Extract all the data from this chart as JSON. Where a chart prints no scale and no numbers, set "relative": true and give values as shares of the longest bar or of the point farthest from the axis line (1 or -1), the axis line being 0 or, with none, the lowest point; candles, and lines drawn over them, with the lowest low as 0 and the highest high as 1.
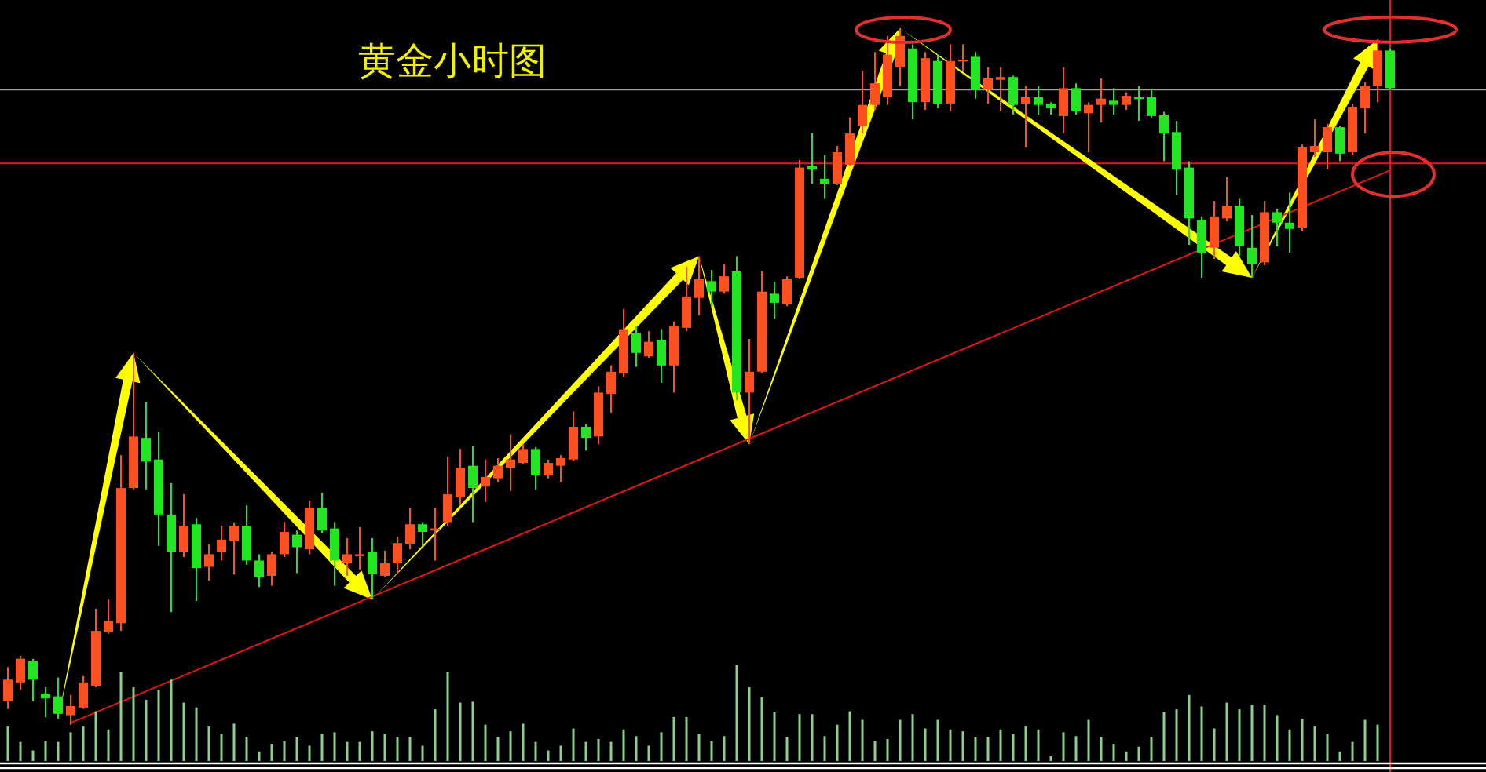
{
  "chart_data": [
    {
      "type": "candlestick",
      "title": "黄金小时图",
      "relative": true,
      "categories": [
        null,
        null,
        null,
        null,
        null,
        null,
        null,
        null,
        null,
        null,
        null,
        null,
        null,
        null,
        null,
        null,
        null,
        null,
        null,
        null,
        null,
        null,
        null,
        null,
        null,
        null,
        null,
        null,
        null,
        null,
        null,
        null,
        null,
        null,
        null,
        null,
        null,
        null,
        null,
        null,
        null,
        null,
        null,
        null,
        null,
        null,
        null,
        null,
        null,
        null,
        null,
        null,
        null,
        null,
        null,
        null,
        null,
        null,
        null,
        null,
        null,
        null,
        null,
        null,
        null,
        null,
        null,
        null,
        null,
        null,
        null,
        null,
        null,
        null,
        null,
        null,
        null,
        null,
        null,
        null,
        null,
        null,
        null,
        null,
        null,
        null,
        null,
        null,
        null,
        null,
        null,
        null,
        null,
        null,
        null,
        null,
        null,
        null,
        null,
        null,
        null,
        null,
        null,
        null,
        null,
        null,
        null,
        null,
        null,
        null,
        null
      ],
      "ohlc": [
        [
          0.034,
          0.083,
          0.023,
          0.065
        ],
        [
          0.061,
          0.099,
          0.05,
          0.095
        ],
        [
          0.092,
          0.095,
          0.034,
          0.065
        ],
        [
          0.045,
          0.054,
          0.011,
          0.038
        ],
        [
          0.041,
          0.068,
          0.009,
          0.016
        ],
        [
          0.014,
          0.043,
          0,
          0.027
        ],
        [
          0.025,
          0.07,
          0.023,
          0.061
        ],
        [
          0.056,
          0.167,
          0.054,
          0.135
        ],
        [
          0.133,
          0.18,
          0.131,
          0.149
        ],
        [
          0.146,
          0.387,
          0.135,
          0.34
        ],
        [
          0.34,
          0.534,
          0.338,
          0.414
        ],
        [
          0.412,
          0.464,
          0.338,
          0.378
        ],
        [
          0.381,
          0.421,
          0.257,
          0.302
        ],
        [
          0.302,
          0.347,
          0.162,
          0.248
        ],
        [
          0.248,
          0.331,
          0.241,
          0.286
        ],
        [
          0.288,
          0.297,
          0.178,
          0.225
        ],
        [
          0.227,
          0.259,
          0.207,
          0.245
        ],
        [
          0.248,
          0.286,
          0.236,
          0.266
        ],
        [
          0.264,
          0.291,
          0.216,
          0.286
        ],
        [
          0.286,
          0.315,
          0.23,
          0.236
        ],
        [
          0.236,
          0.245,
          0.198,
          0.212
        ],
        [
          0.214,
          0.248,
          0.2,
          0.245
        ],
        [
          0.245,
          0.291,
          0.241,
          0.277
        ],
        [
          0.273,
          0.279,
          0.218,
          0.255
        ],
        [
          0.252,
          0.322,
          0.245,
          0.311
        ],
        [
          0.311,
          0.333,
          0.275,
          0.279
        ],
        [
          0.282,
          0.291,
          0.2,
          0.236
        ],
        [
          0.232,
          0.268,
          0.214,
          0.245
        ],
        [
          0.243,
          0.284,
          0.223,
          0.245
        ],
        [
          0.248,
          0.268,
          0.18,
          0.216
        ],
        [
          0.214,
          0.25,
          0.212,
          0.232
        ],
        [
          0.232,
          0.27,
          0.218,
          0.261
        ],
        [
          0.259,
          0.311,
          0.252,
          0.288
        ],
        [
          0.288,
          0.291,
          0.257,
          0.277
        ],
        [
          0.279,
          0.311,
          0.236,
          0.282
        ],
        [
          0.291,
          0.385,
          0.286,
          0.331
        ],
        [
          0.327,
          0.396,
          0.315,
          0.369
        ],
        [
          0.372,
          0.401,
          0.291,
          0.34
        ],
        [
          0.342,
          0.381,
          0.32,
          0.356
        ],
        [
          0.354,
          0.383,
          0.349,
          0.372
        ],
        [
          0.369,
          0.417,
          0.336,
          0.381
        ],
        [
          0.376,
          0.403,
          0.374,
          0.396
        ],
        [
          0.396,
          0.399,
          0.338,
          0.358
        ],
        [
          0.358,
          0.381,
          0.354,
          0.376
        ],
        [
          0.372,
          0.387,
          0.349,
          0.383
        ],
        [
          0.381,
          0.45,
          0.379,
          0.428
        ],
        [
          0.428,
          0.432,
          0.394,
          0.412
        ],
        [
          0.414,
          0.486,
          0.403,
          0.477
        ],
        [
          0.475,
          0.516,
          0.448,
          0.507
        ],
        [
          0.505,
          0.597,
          0.5,
          0.568
        ],
        [
          0.563,
          0.572,
          0.514,
          0.534
        ],
        [
          0.529,
          0.565,
          0.527,
          0.55
        ],
        [
          0.552,
          0.568,
          0.491,
          0.516
        ],
        [
          0.516,
          0.579,
          0.477,
          0.572
        ],
        [
          0.57,
          0.658,
          0.565,
          0.615
        ],
        [
          0.613,
          0.673,
          0.588,
          0.64
        ],
        [
          0.637,
          0.653,
          0.601,
          0.622
        ],
        [
          0.622,
          0.662,
          0.619,
          0.644
        ],
        [
          0.651,
          0.673,
          0.466,
          0.477
        ],
        [
          0.477,
          0.554,
          0.403,
          0.507
        ],
        [
          0.507,
          0.651,
          0.505,
          0.622
        ],
        [
          0.619,
          0.635,
          0.583,
          0.606
        ],
        [
          0.604,
          0.644,
          0.601,
          0.64
        ],
        [
          0.642,
          0.811,
          0.64,
          0.8
        ],
        [
          0.802,
          0.849,
          0.777,
          0.797
        ],
        [
          0.784,
          0.818,
          0.755,
          0.777
        ],
        [
          0.777,
          0.831,
          0.775,
          0.822
        ],
        [
          0.804,
          0.872,
          0.802,
          0.849
        ],
        [
          0.86,
          0.939,
          0.849,
          0.89
        ],
        [
          0.89,
          0.966,
          0.883,
          0.921
        ],
        [
          0.901,
          0.989,
          0.89,
          0.962
        ],
        [
          0.944,
          1,
          0.917,
          0.989
        ],
        [
          0.971,
          0.977,
          0.869,
          0.894
        ],
        [
          0.894,
          0.966,
          0.883,
          0.957
        ],
        [
          0.953,
          0.962,
          0.885,
          0.892
        ],
        [
          0.892,
          0.977,
          0.881,
          0.953
        ],
        [
          0.953,
          0.977,
          0.939,
          0.955
        ],
        [
          0.959,
          0.966,
          0.899,
          0.912
        ],
        [
          0.912,
          0.944,
          0.892,
          0.928
        ],
        [
          0.926,
          0.944,
          0.881,
          0.93
        ],
        [
          0.93,
          0.932,
          0.876,
          0.89
        ],
        [
          0.892,
          0.917,
          0.829,
          0.901
        ],
        [
          0.901,
          0.917,
          0.876,
          0.89
        ],
        [
          0.892,
          0.894,
          0.876,
          0.885
        ],
        [
          0.874,
          0.944,
          0.849,
          0.914
        ],
        [
          0.914,
          0.921,
          0.876,
          0.881
        ],
        [
          0.878,
          0.894,
          0.822,
          0.89
        ],
        [
          0.89,
          0.928,
          0.865,
          0.899
        ],
        [
          0.896,
          0.914,
          0.876,
          0.89
        ],
        [
          0.89,
          0.908,
          0.883,
          0.903
        ],
        [
          0.901,
          0.917,
          0.867,
          0.899
        ],
        [
          0.901,
          0.912,
          0.872,
          0.874
        ],
        [
          0.876,
          0.88,
          0.809,
          0.849
        ],
        [
          0.851,
          0.867,
          0.761,
          0.797
        ],
        [
          0.8,
          0.809,
          0.689,
          0.727
        ],
        [
          0.725,
          0.73,
          0.642,
          0.678
        ],
        [
          0.685,
          0.752,
          0.669,
          0.73
        ],
        [
          0.727,
          0.786,
          0.723,
          0.745
        ],
        [
          0.745,
          0.755,
          0.673,
          0.687
        ],
        [
          0.685,
          0.732,
          0.642,
          0.662
        ],
        [
          0.664,
          0.752,
          0.66,
          0.736
        ],
        [
          0.736,
          0.741,
          0.687,
          0.721
        ],
        [
          0.721,
          0.764,
          0.678,
          0.712
        ],
        [
          0.714,
          0.833,
          0.709,
          0.829
        ],
        [
          0.822,
          0.869,
          0.815,
          0.831
        ],
        [
          0.822,
          0.863,
          0.797,
          0.858
        ],
        [
          0.858,
          0.86,
          0.809,
          0.82
        ],
        [
          0.822,
          0.892,
          0.818,
          0.887
        ],
        [
          0.885,
          0.923,
          0.849,
          0.917
        ],
        [
          0.917,
          0.984,
          0.894,
          0.968
        ],
        [
          0.968,
          0.971,
          0.912,
          0.914
        ]
      ],
      "colors": [
        "#ff5020",
        "#ff5020",
        "#22e622",
        "#22e622",
        "#22e622",
        "#ff5020",
        "#ff5020",
        "#ff5020",
        "#ff5020",
        "#ff5020",
        "#ff5020",
        "#22e622",
        "#22e622",
        "#22e622",
        "#ff5020",
        "#22e622",
        "#ff5020",
        "#ff5020",
        "#ff5020",
        "#22e622",
        "#22e622",
        "#ff5020",
        "#ff5020",
        "#22e622",
        "#ff5020",
        "#22e622",
        "#22e622",
        "#ff5020",
        "#ff5020",
        "#22e622",
        "#ff5020",
        "#ff5020",
        "#ff5020",
        "#22e622",
        "#ff5020",
        "#ff5020",
        "#ff5020",
        "#22e622",
        "#ff5020",
        "#ff5020",
        "#ff5020",
        "#ff5020",
        "#22e622",
        "#ff5020",
        "#ff5020",
        "#ff5020",
        "#22e622",
        "#ff5020",
        "#ff5020",
        "#ff5020",
        "#22e622",
        "#ff5020",
        "#22e622",
        "#ff5020",
        "#ff5020",
        "#ff5020",
        "#22e622",
        "#ff5020",
        "#22e622",
        "#ff5020",
        "#ff5020",
        "#22e622",
        "#ff5020",
        "#ff5020",
        "#22e622",
        "#22e622",
        "#ff5020",
        "#ff5020",
        "#ff5020",
        "#ff5020",
        "#ff5020",
        "#ff5020",
        "#22e622",
        "#ff5020",
        "#22e622",
        "#ff5020",
        "#ff5020",
        "#22e622",
        "#ff5020",
        "#ff5020",
        "#22e622",
        "#ff5020",
        "#22e622",
        "#22e622",
        "#ff5020",
        "#22e622",
        "#ff5020",
        "#ff5020",
        "#22e622",
        "#ff5020",
        "#22e622",
        "#22e622",
        "#22e622",
        "#22e622",
        "#22e622",
        "#22e622",
        "#ff5020",
        "#ff5020",
        "#22e622",
        "#22e622",
        "#ff5020",
        "#22e622",
        "#22e622",
        "#ff5020",
        "#ff5020",
        "#ff5020",
        "#22e622",
        "#ff5020",
        "#ff5020",
        "#ff5020",
        "#22e622"
      ],
      "series": [
        {
          "type": "line",
          "values": [
            null,
            null,
            null,
            null,
            null,
            0.003,
            null,
            null,
            null,
            null,
            null,
            null,
            null,
            null,
            null,
            null,
            null,
            null,
            null,
            null,
            null,
            null,
            null,
            null,
            null,
            null,
            null,
            null,
            null,
            null,
            null,
            null,
            null,
            null,
            null,
            null,
            null,
            null,
            null,
            null,
            null,
            null,
            null,
            null,
            null,
            null,
            null,
            null,
            null,
            null,
            null,
            null,
            null,
            null,
            null,
            null,
            null,
            null,
            null,
            null,
            null,
            null,
            null,
            null,
            null,
            null,
            null,
            null,
            null,
            null,
            null,
            null,
            null,
            null,
            null,
            null,
            null,
            null,
            null,
            null,
            null,
            null,
            null,
            null,
            null,
            null,
            null,
            null,
            null,
            null,
            null,
            null,
            null,
            null,
            null,
            null,
            null,
            null,
            null,
            null,
            null,
            null,
            null,
            null,
            null,
            null,
            null,
            null,
            null,
            null,
            0.796
          ],
          "color": "#e01818"
        }
      ],
      "ref_lines": [
        {
          "axis": "y",
          "value": 0.912,
          "color": "#9a9a9a"
        },
        {
          "axis": "y",
          "value": 0.806,
          "color": "#e01818"
        }
      ]
    },
    {
      "type": "bar",
      "relative": true,
      "color": "#8ccf8c",
      "categories": [
        null,
        null,
        null,
        null,
        null,
        null,
        null,
        null,
        null,
        null,
        null,
        null,
        null,
        null,
        null,
        null,
        null,
        null,
        null,
        null,
        null,
        null,
        null,
        null,
        null,
        null,
        null,
        null,
        null,
        null,
        null,
        null,
        null,
        null,
        null,
        null,
        null,
        null,
        null,
        null,
        null,
        null,
        null,
        null,
        null,
        null,
        null,
        null,
        null,
        null,
        null,
        null,
        null,
        null,
        null,
        null,
        null,
        null,
        null,
        null,
        null,
        null,
        null,
        null,
        null,
        null,
        null,
        null,
        null,
        null,
        null,
        null,
        null,
        null,
        null,
        null,
        null,
        null,
        null,
        null,
        null,
        null,
        null,
        null,
        null,
        null,
        null,
        null,
        null,
        null,
        null,
        null,
        null,
        null,
        null,
        null,
        null,
        null,
        null,
        null,
        null,
        null,
        null,
        null,
        null,
        null,
        null,
        null,
        null,
        null,
        null
      ],
      "values": [
        0.36,
        0.2,
        0.11,
        0.21,
        0.2,
        0.3,
        0.36,
        0.52,
        0.33,
        0.93,
        0.77,
        0.64,
        0.74,
        0.85,
        0.61,
        0.56,
        0.36,
        0.28,
        0.39,
        0.25,
        0.1,
        0.18,
        0.21,
        0.25,
        0.16,
        0.28,
        0.3,
        0.2,
        0.2,
        0.31,
        0.28,
        0.25,
        0.25,
        0.16,
        0.54,
        0.93,
        0.61,
        0.62,
        0.38,
        0.25,
        0.31,
        0.39,
        0.2,
        0.11,
        0.16,
        0.34,
        0.2,
        0.23,
        0.2,
        0.33,
        0.26,
        0.16,
        0.3,
        0.46,
        0.46,
        0.28,
        0.21,
        0.26,
        1,
        0.77,
        0.67,
        0.51,
        0.25,
        0.49,
        0.49,
        0.26,
        0.38,
        0.52,
        0.43,
        0.21,
        0.23,
        0.43,
        0.49,
        0.34,
        0.43,
        0.33,
        0.31,
        0.25,
        0.25,
        0.33,
        0.28,
        0.36,
        0.33,
        0.05,
        0.3,
        0.26,
        0.43,
        0.25,
        0.18,
        0.1,
        0.15,
        0.25,
        0.51,
        0.54,
        0.69,
        0.57,
        0.34,
        0.61,
        0.54,
        0.59,
        0.59,
        0.48,
        0.33,
        0.44,
        0.36,
        0.28,
        0.1,
        0.2,
        0.43,
        0.38,
        null
      ]
    }
  ]
}
